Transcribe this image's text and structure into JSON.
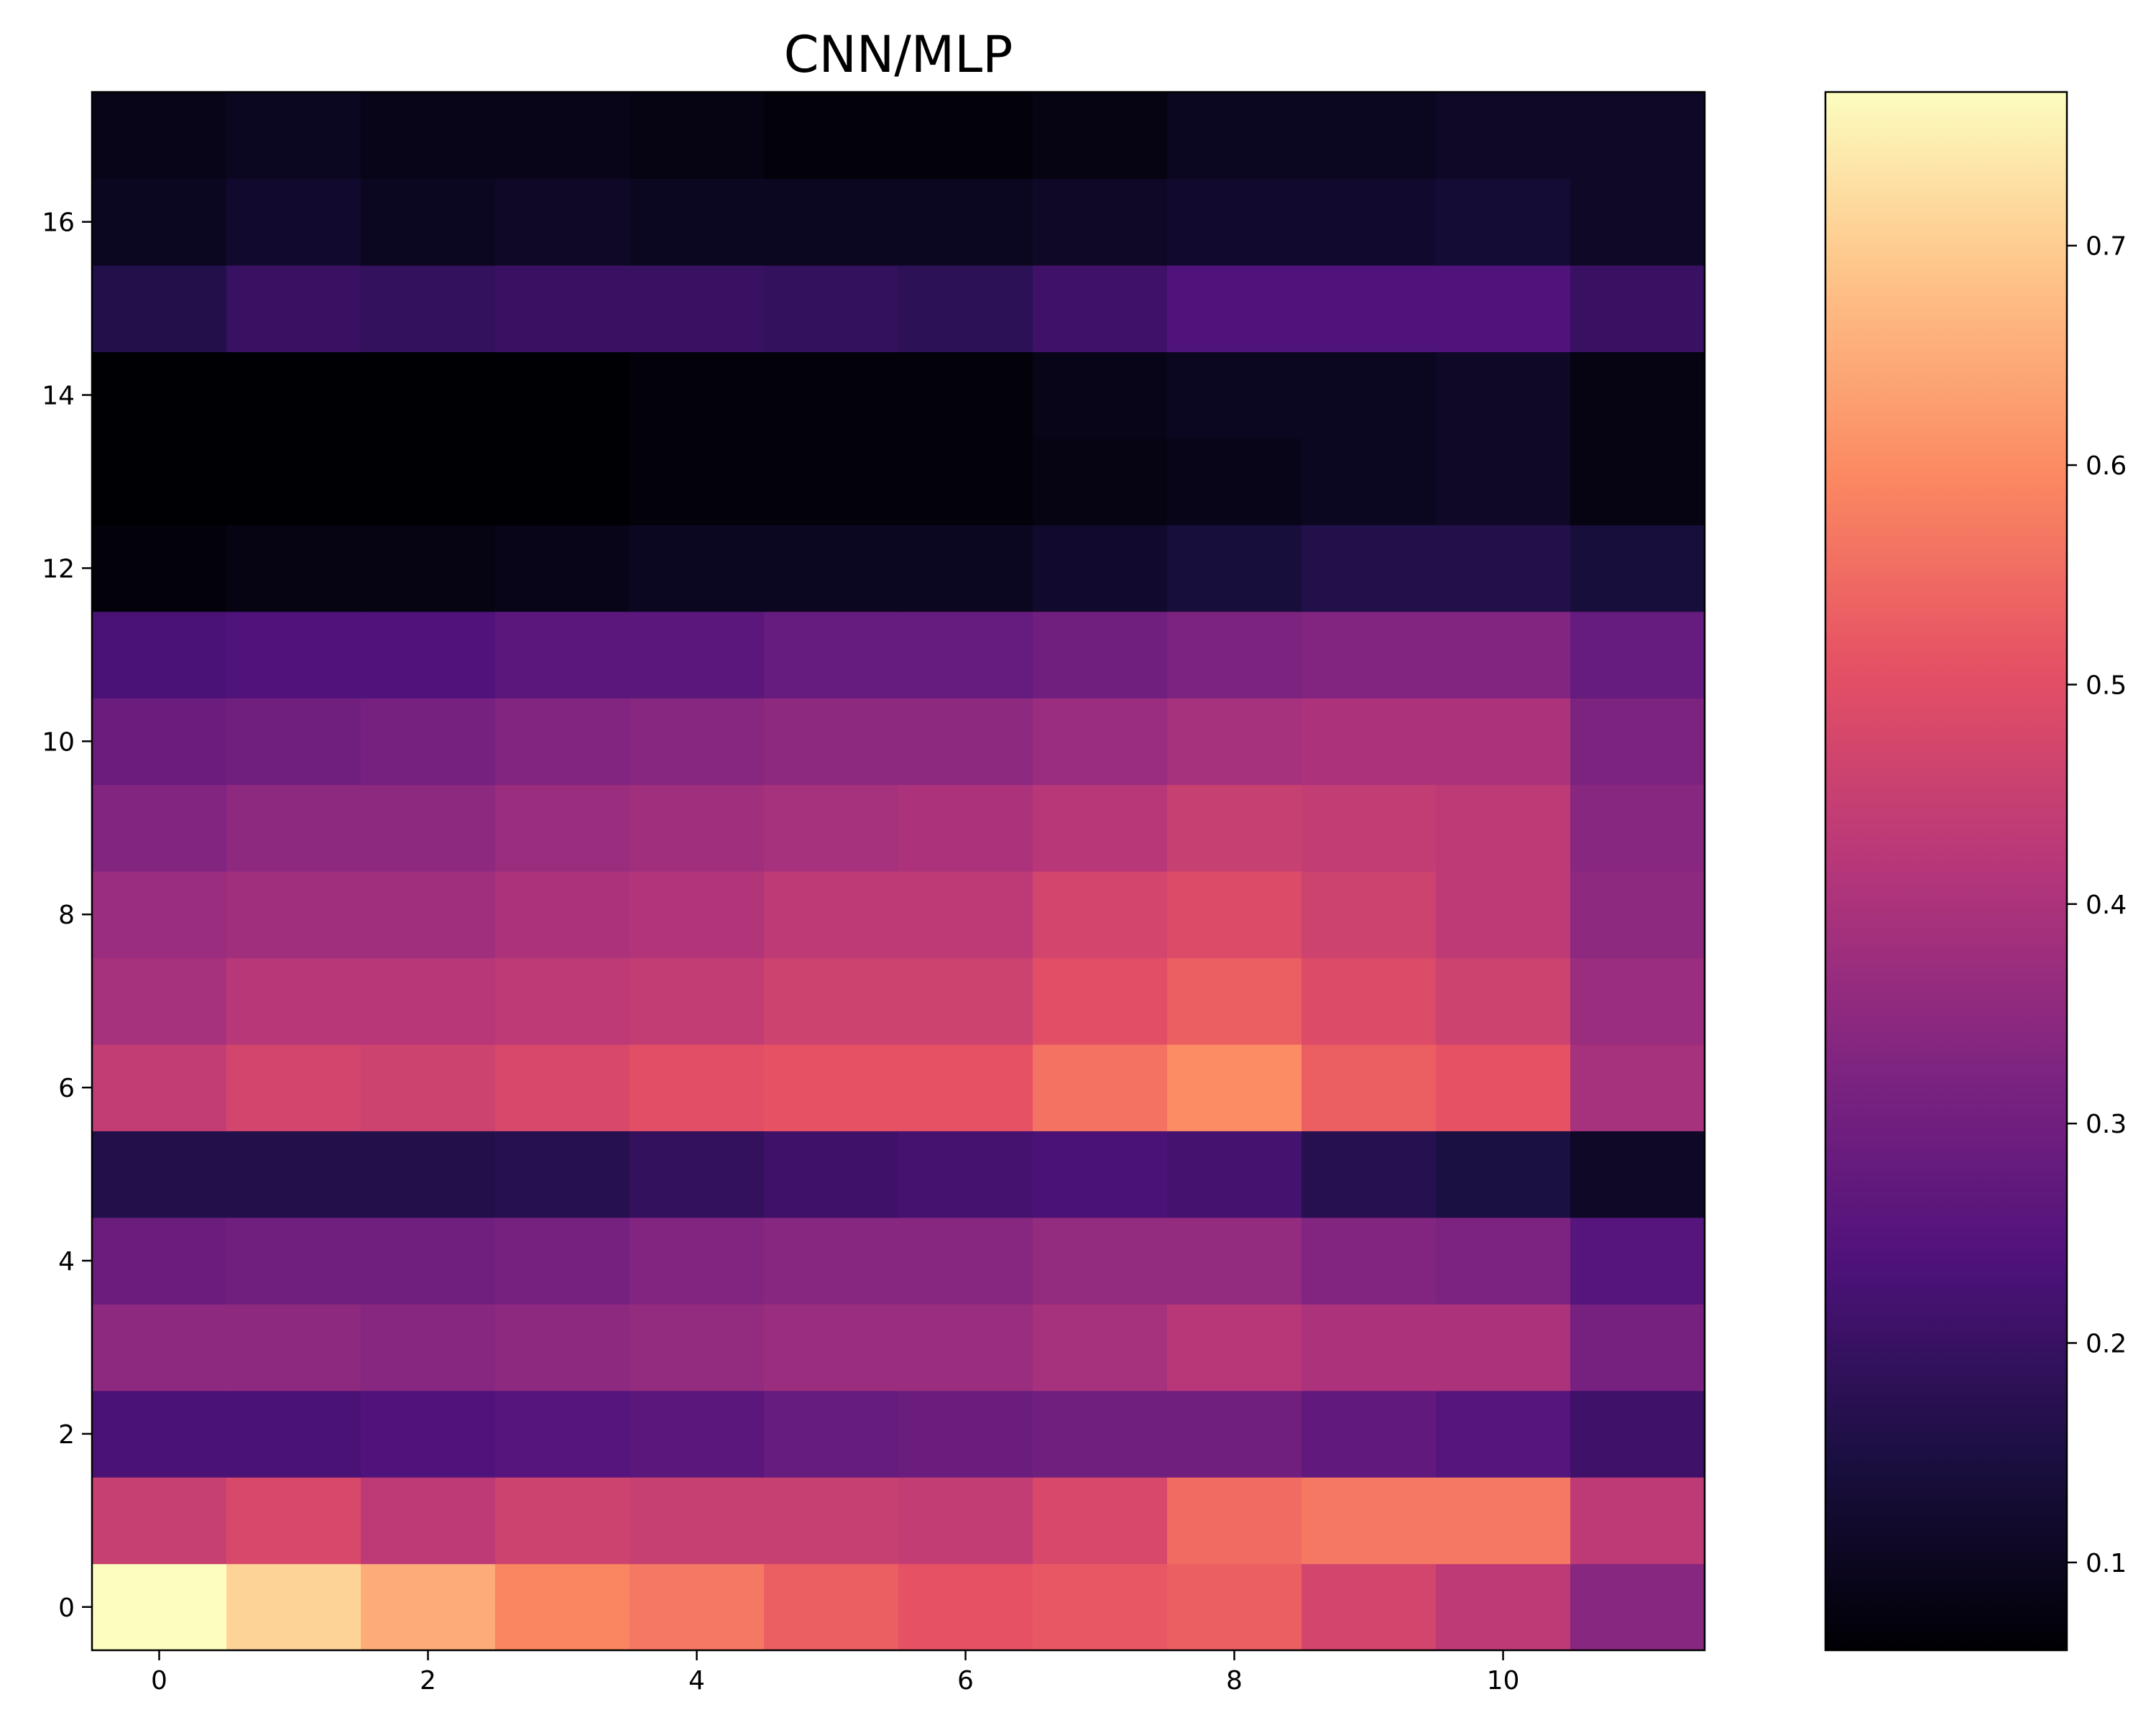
{
  "chart_data": {
    "type": "heatmap",
    "title": "CNN/MLP",
    "xlabel": "",
    "ylabel": "",
    "colormap": "magma",
    "x_ticks": [
      0,
      2,
      4,
      6,
      8,
      10
    ],
    "y_ticks": [
      0,
      2,
      4,
      6,
      8,
      10,
      12,
      14,
      16
    ],
    "x_tick_labels": [
      "0",
      "2",
      "4",
      "6",
      "8",
      "10"
    ],
    "y_tick_labels": [
      "0",
      "2",
      "4",
      "6",
      "8",
      "10",
      "12",
      "14",
      "16"
    ],
    "colorbar": {
      "range": [
        0.06,
        0.77
      ],
      "ticks": [
        0.1,
        0.2,
        0.3,
        0.4,
        0.5,
        0.6,
        0.7
      ],
      "tick_labels": [
        "0.1",
        "0.2",
        "0.3",
        "0.4",
        "0.5",
        "0.6",
        "0.7"
      ]
    },
    "rows": [
      [
        0.77,
        0.71,
        0.65,
        0.59,
        0.57,
        0.53,
        0.51,
        0.52,
        0.53,
        0.47,
        0.43,
        0.34
      ],
      [
        0.45,
        0.48,
        0.43,
        0.46,
        0.45,
        0.45,
        0.44,
        0.48,
        0.55,
        0.57,
        0.57,
        0.43
      ],
      [
        0.23,
        0.23,
        0.24,
        0.25,
        0.26,
        0.28,
        0.29,
        0.3,
        0.3,
        0.27,
        0.25,
        0.21
      ],
      [
        0.35,
        0.35,
        0.34,
        0.35,
        0.36,
        0.37,
        0.37,
        0.39,
        0.42,
        0.4,
        0.4,
        0.31
      ],
      [
        0.29,
        0.3,
        0.3,
        0.31,
        0.33,
        0.34,
        0.34,
        0.36,
        0.36,
        0.33,
        0.32,
        0.25
      ],
      [
        0.16,
        0.16,
        0.16,
        0.17,
        0.19,
        0.21,
        0.22,
        0.23,
        0.22,
        0.17,
        0.15,
        0.11
      ],
      [
        0.44,
        0.47,
        0.46,
        0.48,
        0.5,
        0.51,
        0.51,
        0.56,
        0.6,
        0.53,
        0.51,
        0.39
      ],
      [
        0.39,
        0.42,
        0.42,
        0.43,
        0.44,
        0.46,
        0.46,
        0.5,
        0.53,
        0.49,
        0.46,
        0.37
      ],
      [
        0.37,
        0.38,
        0.38,
        0.4,
        0.41,
        0.43,
        0.43,
        0.47,
        0.49,
        0.46,
        0.43,
        0.35
      ],
      [
        0.33,
        0.35,
        0.35,
        0.37,
        0.38,
        0.39,
        0.4,
        0.42,
        0.45,
        0.44,
        0.43,
        0.34
      ],
      [
        0.29,
        0.3,
        0.31,
        0.33,
        0.34,
        0.35,
        0.35,
        0.37,
        0.39,
        0.4,
        0.4,
        0.32
      ],
      [
        0.23,
        0.24,
        0.24,
        0.26,
        0.26,
        0.28,
        0.28,
        0.3,
        0.32,
        0.33,
        0.33,
        0.28
      ],
      [
        0.07,
        0.08,
        0.08,
        0.09,
        0.1,
        0.1,
        0.1,
        0.12,
        0.14,
        0.16,
        0.16,
        0.14
      ],
      [
        0.06,
        0.06,
        0.06,
        0.06,
        0.07,
        0.07,
        0.07,
        0.08,
        0.09,
        0.1,
        0.11,
        0.08
      ],
      [
        0.06,
        0.06,
        0.06,
        0.06,
        0.07,
        0.07,
        0.07,
        0.09,
        0.1,
        0.1,
        0.11,
        0.08
      ],
      [
        0.16,
        0.2,
        0.19,
        0.2,
        0.2,
        0.19,
        0.18,
        0.21,
        0.24,
        0.24,
        0.24,
        0.2
      ],
      [
        0.1,
        0.12,
        0.1,
        0.11,
        0.1,
        0.1,
        0.1,
        0.11,
        0.12,
        0.12,
        0.13,
        0.11
      ],
      [
        0.09,
        0.1,
        0.09,
        0.09,
        0.08,
        0.07,
        0.07,
        0.08,
        0.1,
        0.1,
        0.11,
        0.11
      ]
    ]
  }
}
